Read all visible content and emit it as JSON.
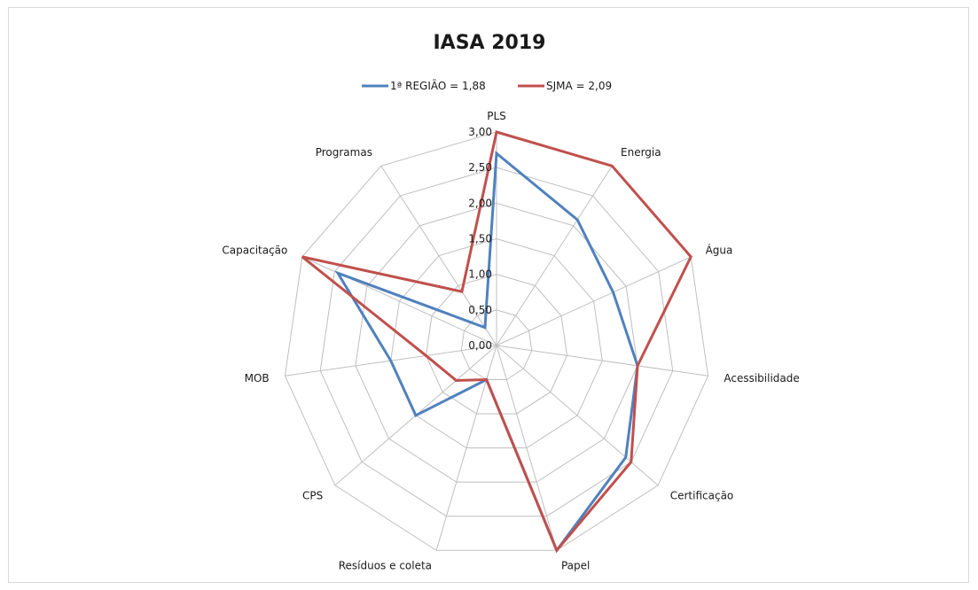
{
  "chart_data": {
    "type": "radar",
    "title": "IASA 2019",
    "categories": [
      "PLS",
      "Energia",
      "Água",
      "Acessibilidade",
      "Certificação",
      "Papel",
      "Resíduos e coleta",
      "CPS",
      "MOB",
      "Capacitação",
      "Programas"
    ],
    "series": [
      {
        "name": "1ª REGIÃO = 1,88",
        "color": "#4f81bd",
        "values": [
          2.7,
          2.1,
          1.8,
          2.0,
          2.4,
          3.0,
          0.5,
          1.5,
          1.5,
          2.45,
          0.3
        ]
      },
      {
        "name": "SJMA = 2,09",
        "color": "#c0504d",
        "values": [
          3.0,
          3.0,
          3.0,
          2.0,
          2.5,
          3.0,
          0.5,
          0.75,
          1.0,
          3.0,
          0.9
        ]
      }
    ],
    "ticks": [
      "0,00",
      "0,50",
      "1,00",
      "1,50",
      "2,00",
      "2,50",
      "3,00"
    ],
    "rmin": 0,
    "rmax": 3,
    "grid": true,
    "legend_position": "top"
  }
}
